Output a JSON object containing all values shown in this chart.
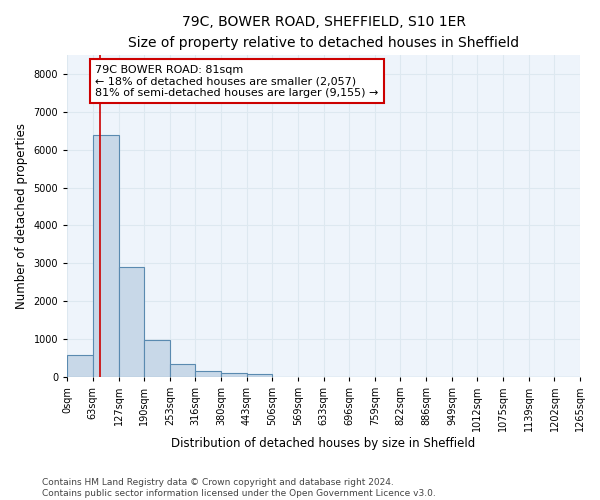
{
  "title": "79C, BOWER ROAD, SHEFFIELD, S10 1ER",
  "subtitle": "Size of property relative to detached houses in Sheffield",
  "xlabel": "Distribution of detached houses by size in Sheffield",
  "ylabel": "Number of detached properties",
  "bar_color": "#c8d8e8",
  "bar_edge_color": "#5a8ab0",
  "grid_color": "#dde8f0",
  "background_color": "#eef4fb",
  "bin_edges": [
    0,
    63,
    127,
    190,
    253,
    316,
    380,
    443,
    506,
    569,
    633,
    696,
    759,
    822,
    886,
    949,
    1012,
    1075,
    1139,
    1202,
    1265
  ],
  "bin_labels": [
    "0sqm",
    "63sqm",
    "127sqm",
    "190sqm",
    "253sqm",
    "316sqm",
    "380sqm",
    "443sqm",
    "506sqm",
    "569sqm",
    "633sqm",
    "696sqm",
    "759sqm",
    "822sqm",
    "886sqm",
    "949sqm",
    "1012sqm",
    "1075sqm",
    "1139sqm",
    "1202sqm",
    "1265sqm"
  ],
  "bar_heights": [
    580,
    6380,
    2900,
    970,
    350,
    160,
    95,
    70,
    0,
    0,
    0,
    0,
    0,
    0,
    0,
    0,
    0,
    0,
    0,
    0
  ],
  "property_size": 81,
  "annotation_line1": "79C BOWER ROAD: 81sqm",
  "annotation_line2": "← 18% of detached houses are smaller (2,057)",
  "annotation_line3": "81% of semi-detached houses are larger (9,155) →",
  "annotation_box_color": "#ffffff",
  "annotation_box_edge_color": "#cc0000",
  "red_line_color": "#cc0000",
  "ylim": [
    0,
    8500
  ],
  "yticks": [
    0,
    1000,
    2000,
    3000,
    4000,
    5000,
    6000,
    7000,
    8000
  ],
  "footnote": "Contains HM Land Registry data © Crown copyright and database right 2024.\nContains public sector information licensed under the Open Government Licence v3.0.",
  "title_fontsize": 10,
  "subtitle_fontsize": 9,
  "axis_label_fontsize": 8.5,
  "tick_fontsize": 7,
  "annotation_fontsize": 8,
  "footnote_fontsize": 6.5
}
